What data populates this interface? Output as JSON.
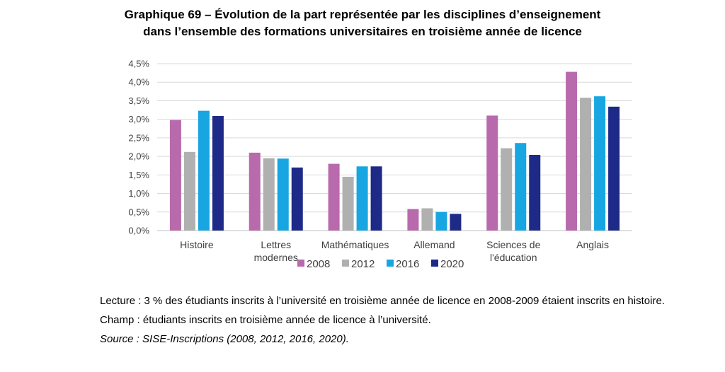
{
  "title_line1": "Graphique 69 – Évolution de la part représentée par les disciplines d’enseignement",
  "title_line2": "dans l’ensemble des formations universitaires en troisième année de licence",
  "chart_data": {
    "type": "bar",
    "categories": [
      [
        "Histoire"
      ],
      [
        "Lettres",
        "modernes"
      ],
      [
        "Mathématiques"
      ],
      [
        "Allemand"
      ],
      [
        "Sciences de",
        "l'éducation"
      ],
      [
        "Anglais"
      ]
    ],
    "series": [
      {
        "name": "2008",
        "color": "#b86aad",
        "values": [
          2.98,
          2.1,
          1.8,
          0.58,
          3.1,
          4.28
        ]
      },
      {
        "name": "2012",
        "color": "#b0b0b0",
        "values": [
          2.12,
          1.95,
          1.45,
          0.6,
          2.22,
          3.58
        ]
      },
      {
        "name": "2016",
        "color": "#17a6e2",
        "values": [
          3.23,
          1.94,
          1.73,
          0.5,
          2.36,
          3.62
        ]
      },
      {
        "name": "2020",
        "color": "#1e2a87",
        "values": [
          3.09,
          1.7,
          1.73,
          0.45,
          2.04,
          3.34
        ]
      }
    ],
    "ylim": [
      0,
      4.5
    ],
    "yticks": [
      "0,0%",
      "0,5%",
      "1,0%",
      "1,5%",
      "2,0%",
      "2,5%",
      "3,0%",
      "3,5%",
      "4,0%",
      "4,5%"
    ],
    "grid": true,
    "legend": "bottom"
  },
  "notes": {
    "lecture": "Lecture : 3 % des étudiants inscrits à l’université en troisième année de licence en 2008-2009 étaient inscrits en histoire.",
    "champ": "Champ : étudiants inscrits en troisième année de licence à l’université.",
    "source": "Source : SISE-Inscriptions (2008, 2012, 2016, 2020)."
  }
}
